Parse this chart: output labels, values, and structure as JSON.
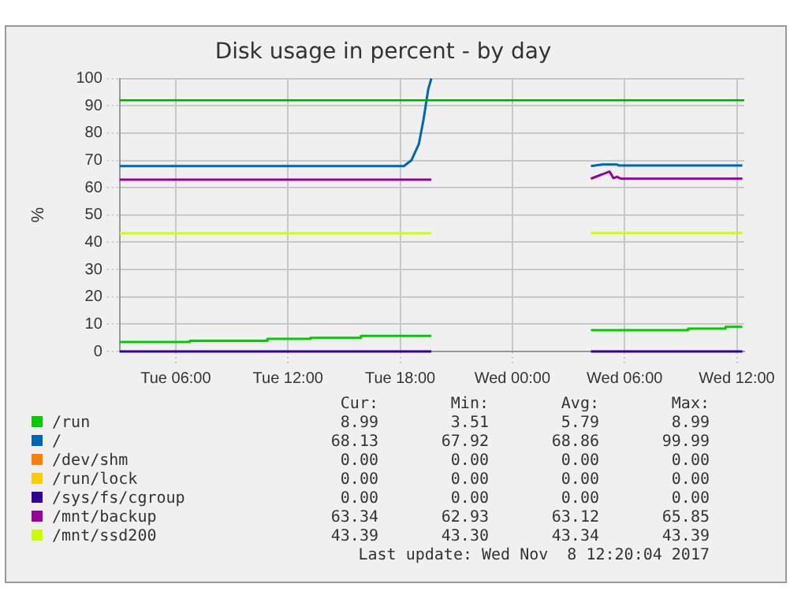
{
  "chart_data": {
    "type": "line",
    "title": "Disk usage in percent - by day",
    "ylabel": "%",
    "xlim": [
      "2017-11-07T03:00",
      "2017-11-08T12:24"
    ],
    "xticks": [
      {
        "value": "2017-11-07T06:00",
        "label": "Tue 06:00"
      },
      {
        "value": "2017-11-07T12:00",
        "label": "Tue 12:00"
      },
      {
        "value": "2017-11-07T18:00",
        "label": "Tue 18:00"
      },
      {
        "value": "2017-11-08T00:00",
        "label": "Wed 00:00"
      },
      {
        "value": "2017-11-08T06:00",
        "label": "Wed 06:00"
      },
      {
        "value": "2017-11-08T12:00",
        "label": "Wed 12:00"
      }
    ],
    "ylim": [
      0,
      100
    ],
    "yticks": [
      0,
      10,
      20,
      30,
      40,
      50,
      60,
      70,
      80,
      90,
      100
    ],
    "grid": true,
    "legend": "bottom",
    "line_style": "solid",
    "ref_lines": [
      {
        "axis": "y",
        "value": 92,
        "color": "#00aa00"
      }
    ],
    "series": [
      {
        "name": "/run",
        "color": "#00cc00",
        "x": [
          "2017-11-07T03:00",
          "2017-11-07T06:45",
          "2017-11-07T06:45",
          "2017-11-07T10:54",
          "2017-11-07T10:54",
          "2017-11-07T13:12",
          "2017-11-07T13:12",
          "2017-11-07T15:54",
          "2017-11-07T15:54",
          "2017-11-07T19:40",
          "2017-11-08T00:00",
          "2017-11-08T04:12",
          "2017-11-08T09:24",
          "2017-11-08T09:24",
          "2017-11-08T11:24",
          "2017-11-08T11:24",
          "2017-11-08T12:18"
        ],
        "values": [
          3.5,
          3.5,
          3.9,
          3.9,
          4.6,
          4.6,
          5.0,
          5.0,
          5.7,
          5.7,
          null,
          7.8,
          7.8,
          8.4,
          8.4,
          9.0,
          9.0
        ]
      },
      {
        "name": "/",
        "color": "#0066b3",
        "x": [
          "2017-11-07T03:00",
          "2017-11-07T18:12",
          "2017-11-07T18:36",
          "2017-11-07T19:00",
          "2017-11-07T19:15",
          "2017-11-07T19:30",
          "2017-11-07T19:40",
          "2017-11-08T00:00",
          "2017-11-08T04:12",
          "2017-11-08T04:48",
          "2017-11-08T05:36",
          "2017-11-08T05:42",
          "2017-11-08T12:18"
        ],
        "values": [
          67.9,
          67.9,
          70,
          76,
          85,
          96,
          100,
          null,
          67.9,
          68.5,
          68.5,
          68.1,
          68.1
        ]
      },
      {
        "name": "/dev/shm",
        "color": "#ff8000",
        "values": [
          null
        ]
      },
      {
        "name": "/run/lock",
        "color": "#ffcc00",
        "values": [
          null
        ]
      },
      {
        "name": "/sys/fs/cgroup",
        "color": "#330099",
        "x": [
          "2017-11-07T03:00",
          "2017-11-07T19:40",
          "2017-11-08T00:00",
          "2017-11-08T04:12",
          "2017-11-08T12:18"
        ],
        "values": [
          0,
          0,
          null,
          0,
          0
        ]
      },
      {
        "name": "/mnt/backup",
        "color": "#990099",
        "x": [
          "2017-11-07T03:00",
          "2017-11-07T19:40",
          "2017-11-08T00:00",
          "2017-11-08T04:12",
          "2017-11-08T05:12",
          "2017-11-08T05:24",
          "2017-11-08T05:36",
          "2017-11-08T05:48",
          "2017-11-08T12:18"
        ],
        "values": [
          62.9,
          62.9,
          null,
          63.3,
          65.9,
          63.5,
          64,
          63.3,
          63.3
        ]
      },
      {
        "name": "/mnt/ssd200",
        "color": "#ccff00",
        "x": [
          "2017-11-07T03:00",
          "2017-11-07T19:40",
          "2017-11-08T00:00",
          "2017-11-08T04:12",
          "2017-11-08T12:18"
        ],
        "values": [
          43.3,
          43.3,
          null,
          43.4,
          43.4
        ]
      }
    ],
    "annotations": [
      "Cur:",
      "Min:",
      "Avg:",
      "Max:",
      "8.99",
      "3.51",
      "5.79",
      "8.99",
      "68.13",
      "67.92",
      "68.86",
      "99.99",
      "0.00",
      "0.00",
      "0.00",
      "0.00",
      "0.00",
      "0.00",
      "0.00",
      "0.00",
      "0.00",
      "0.00",
      "0.00",
      "0.00",
      "63.34",
      "62.93",
      "63.12",
      "65.85",
      "43.39",
      "43.30",
      "43.34",
      "43.39",
      "Last update: Wed Nov  8 12:20:04 2017"
    ]
  }
}
